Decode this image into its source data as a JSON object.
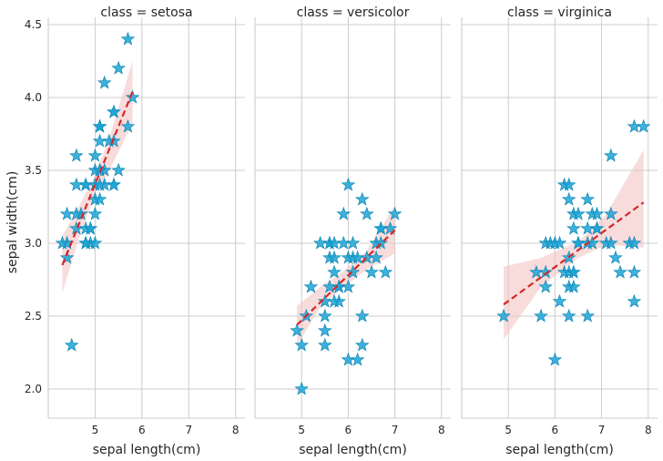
{
  "chart_data": {
    "type": "scatter",
    "figure": "faceted scatter with linear regression fit (dashed red) and confidence band",
    "marker": "star",
    "colors": {
      "points": "#1ba5d6",
      "points_edge": "#0f86b5",
      "fit_line": "#d62728",
      "ci_band": "#f4c4c4",
      "grid": "#cccccc",
      "text": "#262626"
    },
    "ylabel": "sepal width(cm)",
    "xlim": [
      4.0,
      8.2
    ],
    "ylim": [
      1.8,
      4.55
    ],
    "xticks": [
      5,
      6,
      7,
      8
    ],
    "yticks": [
      2.0,
      2.5,
      3.0,
      3.5,
      4.0,
      4.5
    ],
    "grid": true,
    "facets": [
      {
        "title": "class = setosa",
        "xlabel": "sepal length(cm)",
        "fit": {
          "x": [
            4.3,
            5.8
          ],
          "y": [
            2.85,
            4.04
          ]
        },
        "ci": {
          "x": [
            4.3,
            4.7,
            5.0,
            5.3,
            5.8
          ],
          "upper": [
            3.05,
            3.28,
            3.47,
            3.72,
            4.25
          ],
          "lower": [
            2.66,
            3.08,
            3.34,
            3.5,
            3.82
          ]
        },
        "points": [
          [
            5.7,
            4.4
          ],
          [
            5.5,
            4.2
          ],
          [
            5.2,
            4.1
          ],
          [
            5.8,
            4.0
          ],
          [
            5.4,
            3.9
          ],
          [
            5.4,
            3.9
          ],
          [
            5.1,
            3.8
          ],
          [
            5.1,
            3.8
          ],
          [
            5.1,
            3.8
          ],
          [
            5.7,
            3.8
          ],
          [
            5.4,
            3.7
          ],
          [
            5.3,
            3.7
          ],
          [
            5.1,
            3.7
          ],
          [
            4.6,
            3.6
          ],
          [
            5.0,
            3.6
          ],
          [
            5.1,
            3.5
          ],
          [
            5.0,
            3.5
          ],
          [
            5.5,
            3.5
          ],
          [
            5.2,
            3.5
          ],
          [
            5.1,
            3.5
          ],
          [
            4.6,
            3.4
          ],
          [
            4.8,
            3.4
          ],
          [
            5.4,
            3.4
          ],
          [
            5.2,
            3.4
          ],
          [
            5.0,
            3.4
          ],
          [
            5.4,
            3.4
          ],
          [
            4.8,
            3.4
          ],
          [
            5.1,
            3.4
          ],
          [
            5.0,
            3.3
          ],
          [
            5.1,
            3.3
          ],
          [
            4.7,
            3.2
          ],
          [
            4.4,
            3.2
          ],
          [
            4.6,
            3.2
          ],
          [
            5.0,
            3.2
          ],
          [
            4.6,
            3.1
          ],
          [
            4.9,
            3.1
          ],
          [
            4.8,
            3.1
          ],
          [
            4.9,
            3.1
          ],
          [
            4.9,
            3.0
          ],
          [
            4.4,
            3.0
          ],
          [
            4.8,
            3.0
          ],
          [
            4.3,
            3.0
          ],
          [
            4.8,
            3.0
          ],
          [
            5.0,
            3.0
          ],
          [
            4.4,
            2.9
          ],
          [
            4.5,
            2.3
          ]
        ]
      },
      {
        "title": "class = versicolor",
        "xlabel": "sepal length(cm)",
        "fit": {
          "x": [
            4.9,
            7.0
          ],
          "y": [
            2.44,
            3.09
          ]
        },
        "ci": {
          "x": [
            4.9,
            5.4,
            5.9,
            6.4,
            7.0
          ],
          "upper": [
            2.57,
            2.7,
            2.81,
            2.95,
            3.26
          ],
          "lower": [
            2.3,
            2.56,
            2.7,
            2.82,
            2.93
          ]
        },
        "points": [
          [
            6.0,
            3.4
          ],
          [
            6.3,
            3.3
          ],
          [
            5.9,
            3.2
          ],
          [
            6.4,
            3.2
          ],
          [
            7.0,
            3.2
          ],
          [
            6.9,
            3.1
          ],
          [
            6.7,
            3.1
          ],
          [
            6.7,
            3.1
          ],
          [
            5.4,
            3.0
          ],
          [
            5.6,
            3.0
          ],
          [
            5.9,
            3.0
          ],
          [
            6.1,
            3.0
          ],
          [
            6.6,
            3.0
          ],
          [
            5.6,
            3.0
          ],
          [
            5.7,
            3.0
          ],
          [
            6.7,
            3.0
          ],
          [
            6.5,
            2.8
          ],
          [
            6.0,
            2.9
          ],
          [
            6.1,
            2.9
          ],
          [
            6.2,
            2.9
          ],
          [
            6.4,
            2.9
          ],
          [
            6.6,
            2.9
          ],
          [
            5.6,
            2.9
          ],
          [
            5.7,
            2.9
          ],
          [
            5.7,
            2.8
          ],
          [
            6.1,
            2.8
          ],
          [
            6.8,
            2.8
          ],
          [
            5.8,
            2.7
          ],
          [
            5.2,
            2.7
          ],
          [
            6.0,
            2.7
          ],
          [
            5.6,
            2.7
          ],
          [
            5.8,
            2.7
          ],
          [
            5.5,
            2.6
          ],
          [
            5.8,
            2.6
          ],
          [
            5.7,
            2.6
          ],
          [
            5.5,
            2.5
          ],
          [
            6.3,
            2.5
          ],
          [
            5.1,
            2.5
          ],
          [
            5.5,
            2.4
          ],
          [
            4.9,
            2.4
          ],
          [
            5.0,
            2.3
          ],
          [
            5.5,
            2.3
          ],
          [
            6.3,
            2.3
          ],
          [
            6.0,
            2.2
          ],
          [
            6.2,
            2.2
          ],
          [
            5.0,
            2.0
          ]
        ]
      },
      {
        "title": "class = virginica",
        "xlabel": "sepal length(cm)",
        "fit": {
          "x": [
            4.9,
            7.9
          ],
          "y": [
            2.58,
            3.28
          ]
        },
        "ci": {
          "x": [
            4.9,
            5.7,
            6.5,
            7.1,
            7.9
          ],
          "upper": [
            2.84,
            2.9,
            3.01,
            3.2,
            3.64
          ],
          "lower": [
            2.34,
            2.7,
            2.9,
            2.99,
            2.97
          ]
        },
        "points": [
          [
            7.7,
            3.8
          ],
          [
            7.9,
            3.8
          ],
          [
            7.2,
            3.6
          ],
          [
            6.2,
            3.4
          ],
          [
            6.3,
            3.4
          ],
          [
            6.3,
            3.3
          ],
          [
            6.7,
            3.3
          ],
          [
            6.4,
            3.2
          ],
          [
            6.5,
            3.2
          ],
          [
            6.8,
            3.2
          ],
          [
            6.9,
            3.2
          ],
          [
            7.2,
            3.2
          ],
          [
            6.4,
            3.1
          ],
          [
            6.7,
            3.1
          ],
          [
            6.9,
            3.1
          ],
          [
            6.9,
            3.1
          ],
          [
            5.8,
            3.0
          ],
          [
            5.9,
            3.0
          ],
          [
            6.0,
            3.0
          ],
          [
            6.1,
            3.0
          ],
          [
            6.5,
            3.0
          ],
          [
            6.7,
            3.0
          ],
          [
            6.5,
            3.0
          ],
          [
            7.1,
            3.0
          ],
          [
            7.2,
            3.0
          ],
          [
            7.6,
            3.0
          ],
          [
            7.7,
            3.0
          ],
          [
            6.8,
            3.0
          ],
          [
            7.3,
            2.9
          ],
          [
            6.3,
            2.9
          ],
          [
            5.6,
            2.8
          ],
          [
            5.8,
            2.8
          ],
          [
            6.2,
            2.8
          ],
          [
            6.3,
            2.8
          ],
          [
            6.4,
            2.8
          ],
          [
            7.7,
            2.8
          ],
          [
            6.4,
            2.8
          ],
          [
            7.4,
            2.8
          ],
          [
            5.8,
            2.7
          ],
          [
            6.3,
            2.7
          ],
          [
            6.4,
            2.7
          ],
          [
            6.1,
            2.6
          ],
          [
            7.7,
            2.6
          ],
          [
            4.9,
            2.5
          ],
          [
            5.7,
            2.5
          ],
          [
            6.3,
            2.5
          ],
          [
            6.7,
            2.5
          ],
          [
            6.0,
            2.2
          ]
        ]
      }
    ]
  }
}
